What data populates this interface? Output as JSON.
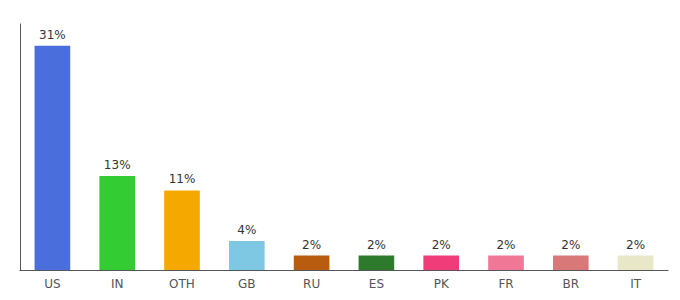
{
  "chart_data": {
    "type": "bar",
    "categories": [
      "US",
      "IN",
      "OTH",
      "GB",
      "RU",
      "ES",
      "PK",
      "FR",
      "BR",
      "IT"
    ],
    "values": [
      31,
      13,
      11,
      4,
      2,
      2,
      2,
      2,
      2,
      2
    ],
    "value_labels": [
      "31%",
      "13%",
      "11%",
      "4%",
      "2%",
      "2%",
      "2%",
      "2%",
      "2%",
      "2%"
    ],
    "colors": [
      "#4a6fdc",
      "#33cc33",
      "#f5a800",
      "#7ec8e3",
      "#b85c10",
      "#2d7a2d",
      "#f03c78",
      "#f07896",
      "#d87878",
      "#e8e8c8"
    ],
    "ylim": [
      0,
      34
    ],
    "grid": false,
    "data_labels": true,
    "tick_labels": "x"
  }
}
